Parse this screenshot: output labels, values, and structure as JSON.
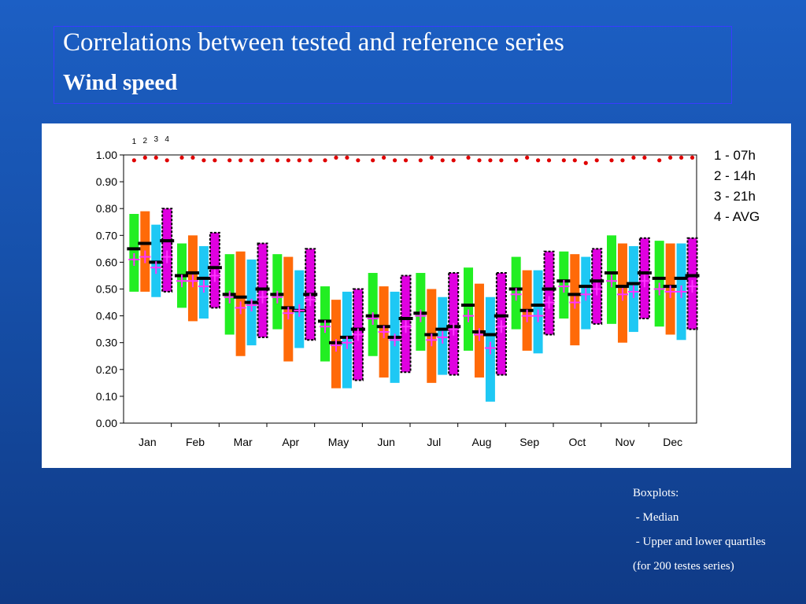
{
  "slide": {
    "title": "Correlations between tested and reference series",
    "subtitle": "Wind speed",
    "notes": [
      "Boxplots:",
      " - Median",
      " - Upper and lower quartiles",
      "(for 200 testes series)"
    ]
  },
  "legend": [
    "1 - 07h",
    "2 - 14h",
    "3 - 21h",
    "4 - AVG"
  ],
  "chart_data": {
    "type": "boxplot",
    "categories": [
      "Jan",
      "Feb",
      "Mar",
      "Apr",
      "May",
      "Jun",
      "Jul",
      "Aug",
      "Sep",
      "Oct",
      "Nov",
      "Dec"
    ],
    "series_labels": [
      "1",
      "2",
      "3",
      "4"
    ],
    "ylim": [
      0,
      1.0
    ],
    "yticks": [
      "0.00",
      "0.10",
      "0.20",
      "0.30",
      "0.40",
      "0.50",
      "0.60",
      "0.70",
      "0.80",
      "0.90",
      "1.00"
    ],
    "colors": [
      "#22ee22",
      "#ff6a08",
      "#1ec8f4",
      "#e000e0"
    ],
    "median_color": "#000000",
    "mean_marker_color": "#ff33ff",
    "reference_point_color": "#e00000",
    "series": [
      {
        "name": "1 - 07h",
        "q1": [
          0.49,
          0.43,
          0.33,
          0.35,
          0.23,
          0.25,
          0.27,
          0.27,
          0.35,
          0.39,
          0.37,
          0.36
        ],
        "q3": [
          0.78,
          0.67,
          0.63,
          0.63,
          0.51,
          0.56,
          0.56,
          0.58,
          0.62,
          0.64,
          0.7,
          0.68
        ],
        "median": [
          0.65,
          0.55,
          0.48,
          0.48,
          0.38,
          0.4,
          0.41,
          0.44,
          0.5,
          0.53,
          0.56,
          0.54
        ],
        "mean": [
          0.61,
          0.53,
          0.47,
          0.47,
          0.36,
          0.39,
          0.4,
          0.4,
          0.48,
          0.51,
          0.53,
          0.5
        ],
        "ref": [
          0.98,
          0.99,
          0.98,
          0.98,
          0.98,
          0.98,
          0.98,
          0.99,
          0.98,
          0.98,
          0.98,
          0.98
        ]
      },
      {
        "name": "2 - 14h",
        "q1": [
          0.49,
          0.38,
          0.25,
          0.23,
          0.13,
          0.17,
          0.15,
          0.17,
          0.27,
          0.29,
          0.3,
          0.33
        ],
        "q3": [
          0.79,
          0.7,
          0.64,
          0.62,
          0.46,
          0.51,
          0.5,
          0.52,
          0.57,
          0.63,
          0.67,
          0.67
        ],
        "median": [
          0.67,
          0.56,
          0.47,
          0.43,
          0.3,
          0.36,
          0.33,
          0.34,
          0.42,
          0.48,
          0.51,
          0.51
        ],
        "mean": [
          0.62,
          0.53,
          0.43,
          0.41,
          0.29,
          0.34,
          0.31,
          0.33,
          0.4,
          0.45,
          0.48,
          0.49
        ],
        "ref": [
          0.99,
          0.99,
          0.98,
          0.98,
          0.99,
          0.99,
          0.99,
          0.98,
          0.99,
          0.98,
          0.98,
          0.99
        ]
      },
      {
        "name": "3 - 21h",
        "q1": [
          0.47,
          0.39,
          0.29,
          0.28,
          0.13,
          0.15,
          0.18,
          0.08,
          0.26,
          0.35,
          0.34,
          0.31
        ],
        "q3": [
          0.74,
          0.66,
          0.61,
          0.57,
          0.49,
          0.49,
          0.47,
          0.47,
          0.57,
          0.62,
          0.66,
          0.67
        ],
        "median": [
          0.6,
          0.54,
          0.45,
          0.42,
          0.32,
          0.32,
          0.35,
          0.33,
          0.44,
          0.51,
          0.52,
          0.54
        ],
        "mean": [
          0.58,
          0.51,
          0.44,
          0.42,
          0.3,
          0.31,
          0.32,
          0.28,
          0.4,
          0.48,
          0.49,
          0.49
        ],
        "ref": [
          0.99,
          0.98,
          0.98,
          0.98,
          0.99,
          0.98,
          0.98,
          0.98,
          0.98,
          0.97,
          0.99,
          0.99
        ]
      },
      {
        "name": "4 - AVG",
        "q1": [
          0.49,
          0.43,
          0.32,
          0.31,
          0.16,
          0.19,
          0.18,
          0.18,
          0.33,
          0.37,
          0.39,
          0.35
        ],
        "q3": [
          0.8,
          0.71,
          0.67,
          0.65,
          0.5,
          0.55,
          0.56,
          0.56,
          0.64,
          0.65,
          0.69,
          0.69
        ],
        "median": [
          0.68,
          0.58,
          0.5,
          0.48,
          0.35,
          0.39,
          0.36,
          0.4,
          0.5,
          0.53,
          0.56,
          0.55
        ],
        "mean": [
          0.62,
          0.55,
          0.47,
          0.46,
          0.33,
          0.36,
          0.35,
          0.36,
          0.45,
          0.5,
          0.53,
          0.51
        ],
        "ref": [
          0.98,
          0.98,
          0.98,
          0.98,
          0.98,
          0.98,
          0.98,
          0.98,
          0.98,
          0.98,
          0.99,
          0.99
        ]
      }
    ]
  }
}
